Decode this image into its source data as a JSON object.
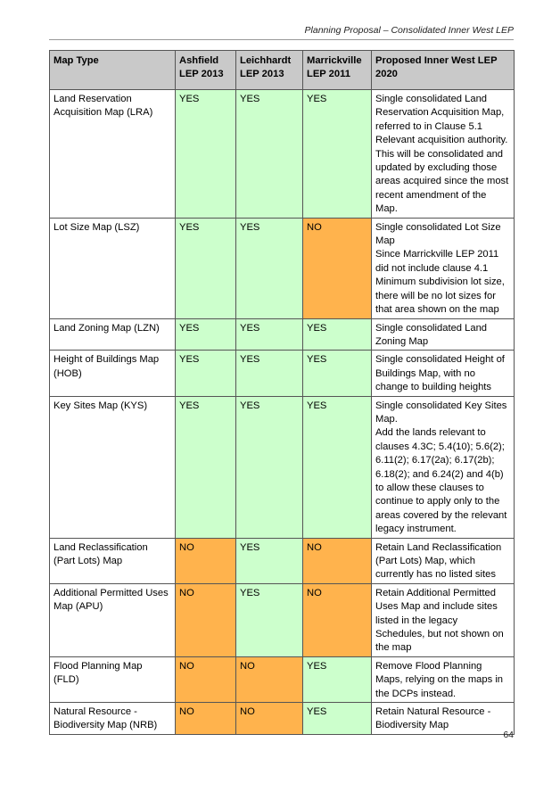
{
  "header": {
    "title": "Planning Proposal – Consolidated Inner West LEP"
  },
  "table": {
    "headers": [
      "Map Type",
      "Ashfield LEP 2013",
      "Leichhardt LEP 2013",
      "Marrickville LEP 2011",
      "Proposed Inner West   LEP 2020"
    ],
    "rows": [
      {
        "map_type": "Land Reservation Acquisition Map (LRA)",
        "ashfield": "YES",
        "leichhardt": "YES",
        "marrickville": "YES",
        "proposed": "Single consolidated Land Reservation Acquisition Map, referred to in Clause 5.1 Relevant acquisition authority. This will be consolidated and updated by excluding those areas acquired since the most recent amendment of the Map."
      },
      {
        "map_type": "Lot Size Map (LSZ)",
        "ashfield": "YES",
        "leichhardt": "YES",
        "marrickville": "NO",
        "proposed": "Single consolidated Lot Size Map\nSince Marrickville LEP 2011 did not include clause 4.1 Minimum subdivision lot size, there will be no lot sizes for that area shown on the map"
      },
      {
        "map_type": "Land Zoning Map (LZN)",
        "ashfield": "YES",
        "leichhardt": "YES",
        "marrickville": "YES",
        "proposed": "Single consolidated Land Zoning Map"
      },
      {
        "map_type": "Height of Buildings Map (HOB)",
        "ashfield": "YES",
        "leichhardt": "YES",
        "marrickville": "YES",
        "proposed": "Single consolidated Height of Buildings Map, with no change to building heights"
      },
      {
        "map_type": "Key Sites Map (KYS)",
        "ashfield": "YES",
        "leichhardt": "YES",
        "marrickville": "YES",
        "proposed": "Single consolidated Key Sites Map.\nAdd the lands relevant to clauses 4.3C; 5.4(10); 5.6(2); 6.11(2); 6.17(2a); 6.17(2b); 6.18(2); and 6.24(2) and 4(b) to allow these clauses to continue to apply only to the areas covered by the relevant legacy instrument."
      },
      {
        "map_type": "Land Reclassification (Part Lots) Map",
        "ashfield": "NO",
        "leichhardt": "YES",
        "marrickville": "NO",
        "proposed": "Retain Land Reclassification (Part Lots) Map, which currently has no listed sites"
      },
      {
        "map_type": "Additional Permitted Uses Map (APU)",
        "ashfield": "NO",
        "leichhardt": "YES",
        "marrickville": "NO",
        "proposed": "Retain Additional Permitted Uses Map and include sites listed in the legacy Schedules, but not shown on the map"
      },
      {
        "map_type": "Flood Planning Map (FLD)",
        "ashfield": "NO",
        "leichhardt": "NO",
        "marrickville": "YES",
        "proposed": "Remove Flood Planning Maps, relying on the maps in the DCPs instead."
      },
      {
        "map_type": "Natural Resource - Biodiversity Map (NRB)",
        "ashfield": "NO",
        "leichhardt": "NO",
        "marrickville": "YES",
        "proposed": "Retain Natural Resource - Biodiversity Map"
      }
    ]
  },
  "footer": {
    "page_number": "64"
  },
  "colors": {
    "yes_fill": "#ccffcc",
    "no_fill": "#ffb34d",
    "header_fill": "#c9c9c9"
  }
}
